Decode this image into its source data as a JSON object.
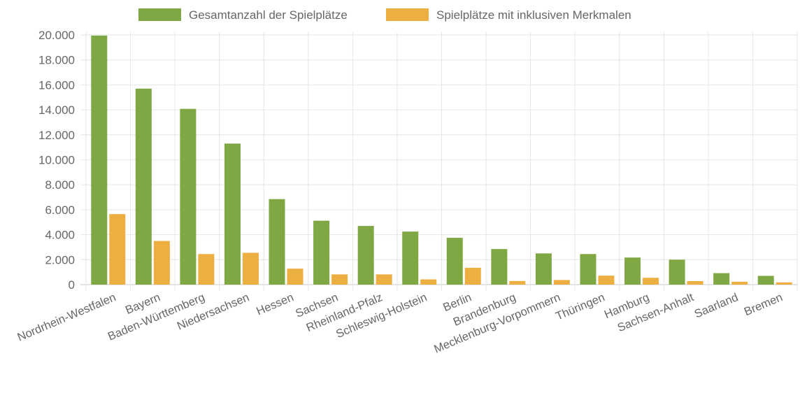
{
  "chart_data": {
    "type": "bar",
    "categories": [
      "Nordrhein-Westfalen",
      "Bayern",
      "Baden-Württemberg",
      "Niedersachsen",
      "Hessen",
      "Sachsen",
      "Rheinland-Pfalz",
      "Schleswig-Holstein",
      "Berlin",
      "Brandenburg",
      "Mecklenburg-Vorpommern",
      "Thüringen",
      "Hamburg",
      "Sachsen-Anhalt",
      "Saarland",
      "Bremen"
    ],
    "series": [
      {
        "name": "Gesamtanzahl der Spielplätze",
        "color": "#7fa845",
        "values": [
          19950,
          15700,
          14080,
          11300,
          6850,
          5120,
          4700,
          4250,
          3750,
          2850,
          2500,
          2450,
          2170,
          2000,
          920,
          700
        ]
      },
      {
        "name": "Spielplätze mit inklusiven Merkmalen",
        "color": "#eeaf42",
        "values": [
          5650,
          3500,
          2450,
          2550,
          1280,
          820,
          820,
          420,
          1350,
          290,
          370,
          720,
          550,
          280,
          230,
          180
        ]
      }
    ],
    "ylim": [
      0,
      20000
    ],
    "y_ticks": [
      "0",
      "2.000",
      "4.000",
      "6.000",
      "8.000",
      "10.000",
      "12.000",
      "14.000",
      "16.000",
      "18.000",
      "20.000"
    ],
    "grid": true,
    "legend_position": "top"
  }
}
